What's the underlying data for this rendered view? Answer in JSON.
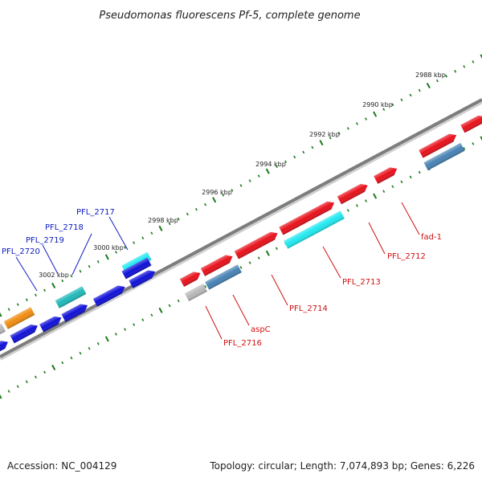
{
  "title": "Pseudomonas fluorescens Pf-5, complete genome",
  "footer": {
    "accession": "Accession: NC_004129",
    "summary": "Topology: circular; Length: 7,074,893 bp; Genes: 6,226"
  },
  "ticks": [
    "2988 kbp",
    "2990 kbp",
    "2992 kbp",
    "2994 kbp",
    "2996 kbp",
    "2998 kbp",
    "3000 kbp",
    "3002 kbp"
  ],
  "colors": {
    "backbone": "#808080",
    "forward_red": "#e8101a",
    "reverse_blue": "#1010d8",
    "cyan": "#20e8f0",
    "teal": "#20b8b8",
    "steelblue": "#4682b4",
    "orange": "#f08c10",
    "grey": "#b8b8b8",
    "tick_green": "#1a7a1a",
    "label_red": "#d01010",
    "label_blue": "#1020c0"
  },
  "gene_labels": {
    "blue": [
      "PFL_2717",
      "PFL_2718",
      "PFL_2719",
      "PFL_2720"
    ],
    "red": [
      "fad-1",
      "PFL_2712",
      "PFL_2713",
      "PFL_2714",
      "aspC",
      "PFL_2716"
    ]
  }
}
